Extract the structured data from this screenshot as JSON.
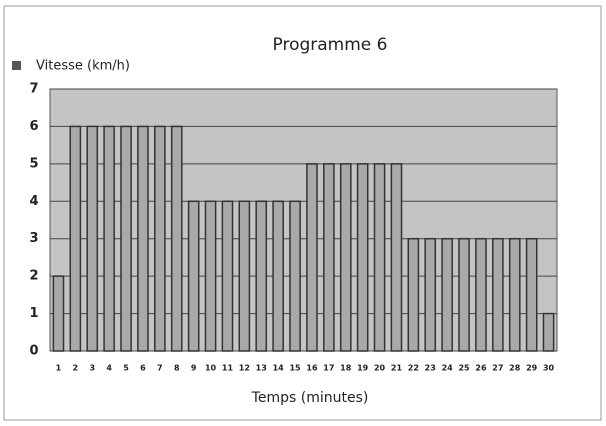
{
  "chart_data": {
    "type": "bar",
    "title": "Programme 6",
    "xlabel": "Temps (minutes)",
    "categories": [
      "1",
      "2",
      "3",
      "4",
      "5",
      "6",
      "7",
      "8",
      "9",
      "10",
      "11",
      "12",
      "13",
      "14",
      "15",
      "16",
      "17",
      "18",
      "19",
      "20",
      "21",
      "22",
      "23",
      "24",
      "25",
      "26",
      "27",
      "28",
      "29",
      "30"
    ],
    "series": [
      {
        "name": "Vitesse (km/h)",
        "color": "#a9a9a9",
        "values": [
          2,
          6,
          6,
          6,
          6,
          6,
          6,
          6,
          4,
          4,
          4,
          4,
          4,
          4,
          4,
          5,
          5,
          5,
          5,
          5,
          5,
          3,
          3,
          3,
          3,
          3,
          3,
          3,
          3,
          1
        ]
      }
    ],
    "ylim": [
      0,
      7
    ],
    "yticks": [
      0,
      1,
      2,
      3,
      4,
      5,
      6,
      7
    ],
    "grid": true,
    "legend": "top-left"
  }
}
